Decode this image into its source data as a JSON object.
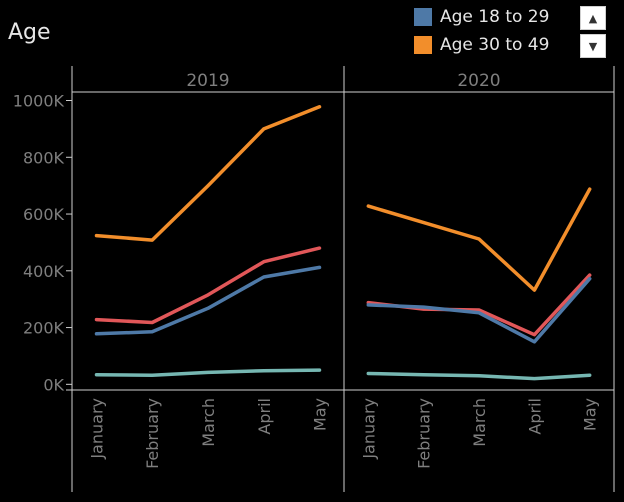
{
  "title": "Age",
  "legend": {
    "items": [
      {
        "label": "Age 18 to 29",
        "color": "#4e79a7"
      },
      {
        "label": "Age 30 to 49",
        "color": "#f28e2b"
      }
    ],
    "scroll_up_icon": "chevron-up-icon",
    "scroll_down_icon": "chevron-down-icon"
  },
  "chart_data": {
    "type": "line",
    "panels": [
      "2019",
      "2020"
    ],
    "categories": [
      "January",
      "February",
      "March",
      "April",
      "May"
    ],
    "yticks": [
      {
        "value": 0,
        "label": "0K"
      },
      {
        "value": 200000,
        "label": "200K"
      },
      {
        "value": 400000,
        "label": "400K"
      },
      {
        "value": 600000,
        "label": "600K"
      },
      {
        "value": 800000,
        "label": "800K"
      },
      {
        "value": 1000000,
        "label": "1000K"
      }
    ],
    "ylim": [
      -20000,
      1030000
    ],
    "series": [
      {
        "name": "Age 30 to 49",
        "color": "#f28e2b",
        "values": {
          "2019": [
            524000,
            508000,
            700000,
            900000,
            978000
          ],
          "2020": [
            628000,
            570000,
            512000,
            332000,
            688000
          ]
        }
      },
      {
        "color": "#e15759",
        "values": {
          "2019": [
            228000,
            218000,
            315000,
            432000,
            480000
          ],
          "2020": [
            288000,
            265000,
            262000,
            175000,
            385000
          ]
        }
      },
      {
        "name": "Age 18 to 29",
        "color": "#4e79a7",
        "values": {
          "2019": [
            178000,
            185000,
            268000,
            378000,
            412000
          ],
          "2020": [
            280000,
            272000,
            252000,
            150000,
            372000
          ]
        }
      },
      {
        "color": "#76b7b2",
        "values": {
          "2019": [
            34000,
            32000,
            42000,
            48000,
            50000
          ],
          "2020": [
            38000,
            34000,
            30000,
            20000,
            32000
          ]
        }
      }
    ]
  }
}
